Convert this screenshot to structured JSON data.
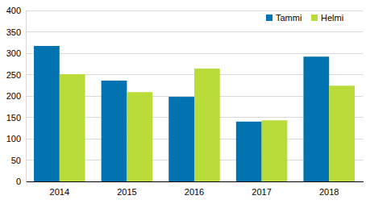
{
  "chart_data": {
    "type": "bar",
    "categories": [
      "2014",
      "2015",
      "2016",
      "2017",
      "2018"
    ],
    "series": [
      {
        "name": "Tammi",
        "color": "#0073b0",
        "values": [
          317,
          236,
          198,
          140,
          292
        ]
      },
      {
        "name": "Helmi",
        "color": "#b9dc3a",
        "values": [
          251,
          209,
          264,
          143,
          224
        ]
      }
    ],
    "ylim": [
      0,
      400
    ],
    "yticks": [
      0,
      50,
      100,
      150,
      200,
      250,
      300,
      350,
      400
    ],
    "grid": true,
    "legend": "top-right"
  }
}
